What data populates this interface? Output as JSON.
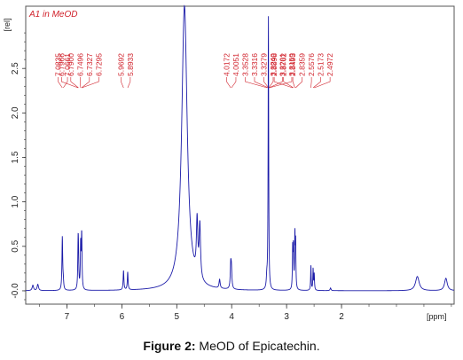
{
  "caption": {
    "label": "Figure 2:",
    "text": " MeOD of Epicatechin."
  },
  "chart_data": {
    "type": "line",
    "sample_label": "A1 in MeOD",
    "y_unit": "[rel]",
    "x_unit": "[ppm]",
    "xlim": [
      7.75,
      -0.05
    ],
    "ylim": [
      -0.15,
      3.2
    ],
    "x_ticks": [
      "7",
      "6",
      "5",
      "4",
      "3",
      "2"
    ],
    "y_ticks": [
      "-0.0",
      "0.5",
      "1.0",
      "1.5",
      "2.0",
      "2.5"
    ],
    "x_tick_values": [
      7,
      6,
      5,
      4,
      3,
      2
    ],
    "y_tick_values": [
      0,
      0.5,
      1.0,
      1.5,
      2.0,
      2.5
    ],
    "line_color": "#1a1aa8",
    "label_color": "#d0202a",
    "peak_groups": [
      {
        "labels": [
          "7.0835",
          "7.0661"
        ],
        "ppm": [
          7.0835,
          7.0661
        ]
      },
      {
        "labels": [
          "6.7966",
          "6.7900",
          "6.7496",
          "6.7327",
          "6.7295"
        ],
        "ppm": [
          6.7966,
          6.79,
          6.7496,
          6.7327,
          6.7295
        ]
      },
      {
        "labels": [
          "5.9692",
          "5.8933"
        ],
        "ppm": [
          5.9692,
          5.8933
        ]
      },
      {
        "labels": [
          "4.0172",
          "4.0051",
          "3.3528",
          "3.3316",
          "3.3279",
          "3.3240",
          "3.3201",
          "3.3159"
        ],
        "ppm": [
          4.0172,
          4.0051,
          3.3528,
          3.3316,
          3.3279,
          3.324,
          3.3201,
          3.3159
        ]
      },
      {
        "labels": [
          "2.8898",
          "2.8762",
          "2.8493",
          "2.8359",
          "2.5576",
          "2.5173",
          "2.4972"
        ],
        "ppm": [
          2.8898,
          2.8762,
          2.8493,
          2.8359,
          2.5576,
          2.5173,
          2.4972
        ]
      }
    ],
    "peaks": [
      {
        "ppm": 7.62,
        "height": 0.06,
        "width": 0.015
      },
      {
        "ppm": 7.53,
        "height": 0.07,
        "width": 0.015
      },
      {
        "ppm": 7.0835,
        "height": 0.6,
        "width": 0.008
      },
      {
        "ppm": 7.0661,
        "height": 0.08,
        "width": 0.008
      },
      {
        "ppm": 6.7966,
        "height": 0.44,
        "width": 0.007
      },
      {
        "ppm": 6.79,
        "height": 0.32,
        "width": 0.007
      },
      {
        "ppm": 6.7496,
        "height": 0.5,
        "width": 0.007
      },
      {
        "ppm": 6.7327,
        "height": 0.35,
        "width": 0.007
      },
      {
        "ppm": 6.7295,
        "height": 0.3,
        "width": 0.007
      },
      {
        "ppm": 5.9692,
        "height": 0.22,
        "width": 0.008
      },
      {
        "ppm": 5.8933,
        "height": 0.2,
        "width": 0.008
      },
      {
        "ppm": 4.86,
        "height": 3.2,
        "width": 0.06
      },
      {
        "ppm": 4.63,
        "height": 0.62,
        "width": 0.015
      },
      {
        "ppm": 4.58,
        "height": 0.6,
        "width": 0.015
      },
      {
        "ppm": 4.22,
        "height": 0.1,
        "width": 0.012
      },
      {
        "ppm": 4.0172,
        "height": 0.26,
        "width": 0.01
      },
      {
        "ppm": 4.0051,
        "height": 0.2,
        "width": 0.01
      },
      {
        "ppm": 3.36,
        "height": 0.12,
        "width": 0.01
      },
      {
        "ppm": 3.3316,
        "height": 3.1,
        "width": 0.006
      },
      {
        "ppm": 2.8898,
        "height": 0.45,
        "width": 0.006
      },
      {
        "ppm": 2.8762,
        "height": 0.47,
        "width": 0.006
      },
      {
        "ppm": 2.8493,
        "height": 0.6,
        "width": 0.006
      },
      {
        "ppm": 2.8359,
        "height": 0.5,
        "width": 0.006
      },
      {
        "ppm": 2.5576,
        "height": 0.28,
        "width": 0.006
      },
      {
        "ppm": 2.5173,
        "height": 0.24,
        "width": 0.006
      },
      {
        "ppm": 2.4972,
        "height": 0.18,
        "width": 0.006
      },
      {
        "ppm": 2.2,
        "height": 0.03,
        "width": 0.01
      },
      {
        "ppm": 0.62,
        "height": 0.16,
        "width": 0.04
      },
      {
        "ppm": 0.1,
        "height": 0.14,
        "width": 0.03
      }
    ]
  }
}
